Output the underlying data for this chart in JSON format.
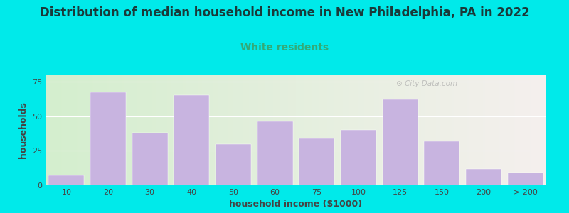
{
  "title": "Distribution of median household income in New Philadelphia, PA in 2022",
  "subtitle": "White residents",
  "xlabel": "household income ($1000)",
  "ylabel": "households",
  "bar_color": "#c8b4e0",
  "background_color": "#00eaea",
  "plot_bg_left": "#d4eece",
  "plot_bg_right": "#f5f0ee",
  "title_color": "#1a3a3a",
  "subtitle_color": "#33aa77",
  "axis_label_color": "#444444",
  "tick_label_color": "#444444",
  "categories": [
    "10",
    "20",
    "30",
    "40",
    "50",
    "60",
    "75",
    "100",
    "125",
    "150",
    "200",
    "> 200"
  ],
  "values": [
    7,
    67,
    38,
    65,
    30,
    46,
    34,
    40,
    62,
    32,
    12,
    9
  ],
  "ylim": [
    0,
    80
  ],
  "yticks": [
    0,
    25,
    50,
    75
  ],
  "watermark": "City-Data.com",
  "title_fontsize": 12,
  "subtitle_fontsize": 10,
  "axis_label_fontsize": 9
}
